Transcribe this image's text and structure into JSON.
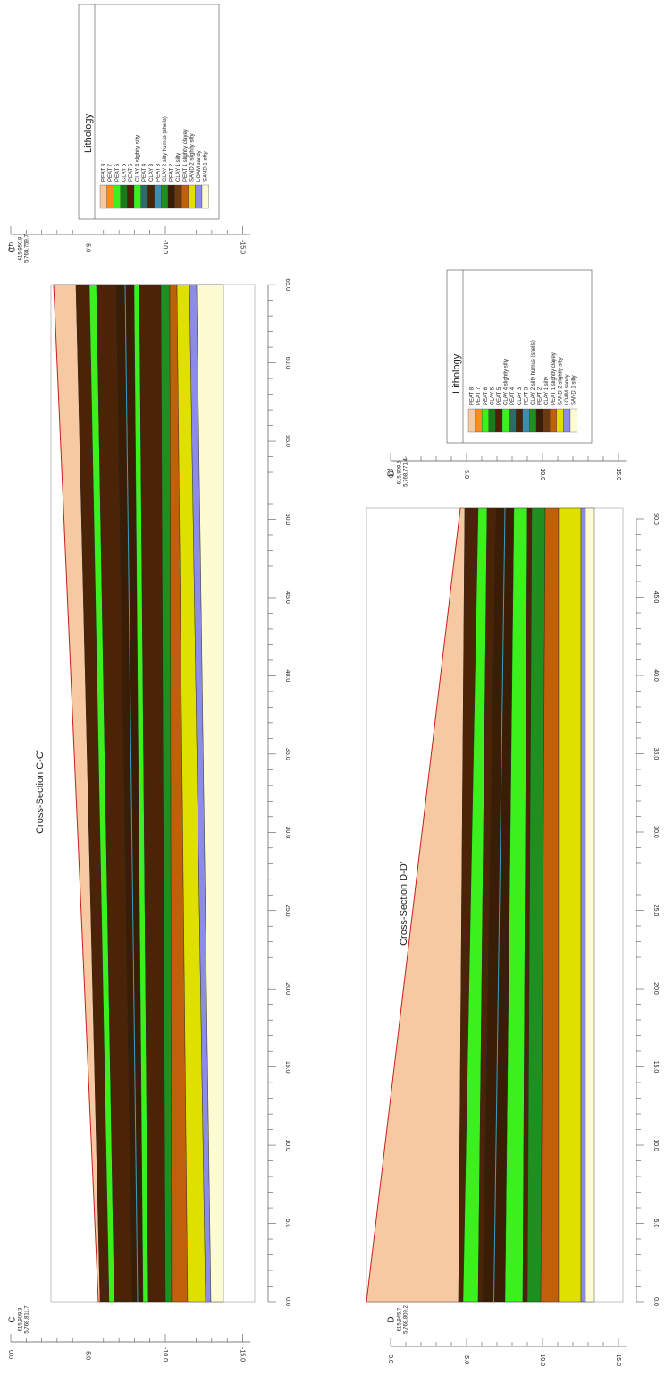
{
  "sections": [
    {
      "title": "Cross-Section C-C'",
      "start": {
        "label": "C",
        "easting": "615,909.3",
        "northing": "5,768,811.7"
      },
      "end": {
        "label": "C'",
        "easting": "615,950.9",
        "northing": "5,768,759.7"
      },
      "depth_ticks": [
        "0.0",
        "-5.0",
        "-10.0",
        "-15.0"
      ],
      "distance_ticks": [
        "0.0",
        "5.0",
        "10.0",
        "15.0",
        "20.0",
        "25.0",
        "30.0",
        "35.0",
        "40.0",
        "45.0",
        "50.0",
        "55.0",
        "60.0",
        "65.0"
      ],
      "legend": {
        "title": "Lithology",
        "items": [
          "PEAT 8",
          "PEAT 7",
          "PEAT 6",
          "CLAY 5",
          "PEAT 5",
          "CLAY 4 slightly silty",
          "PEAT 4",
          "CLAY 3",
          "PEAT 3",
          "CLAY 2 silty humus (shells)",
          "PEAT 2",
          "CLAY 1 silty",
          "PEAT 1 slightly clayey",
          "SAND 2 slightly silty",
          "LOAM sandy",
          "SAND 1 silty"
        ]
      }
    },
    {
      "title": "Cross-Section D-D'",
      "start": {
        "label": "D",
        "easting": "615,945.7",
        "northing": "5,768,809.2"
      },
      "end": {
        "label": "D'",
        "easting": "615,909.5",
        "northing": "5,768,771.4"
      },
      "depth_ticks": [
        "0.0",
        "-5.0",
        "-10.0",
        "-15.0"
      ],
      "distance_ticks": [
        "0.0",
        "5.0",
        "10.0",
        "15.0",
        "20.0",
        "25.0",
        "30.0",
        "35.0",
        "40.0",
        "45.0",
        "50.0"
      ],
      "legend": {
        "title": "Lithology",
        "items": [
          "PEAT 8",
          "PEAT 7",
          "PEAT 6",
          "CLAY 5",
          "PEAT 5",
          "CLAY 4 slightly silty",
          "PEAT 4",
          "CLAY 3",
          "PEAT 3",
          "CLAY 2 silty humus (shells)",
          "PEAT 2",
          "CLAY 1 silty",
          "PEAT 1 slightly clayey",
          "SAND 2 slightly silty",
          "LOAM sandy",
          "SAND 1 silty"
        ]
      }
    }
  ]
}
